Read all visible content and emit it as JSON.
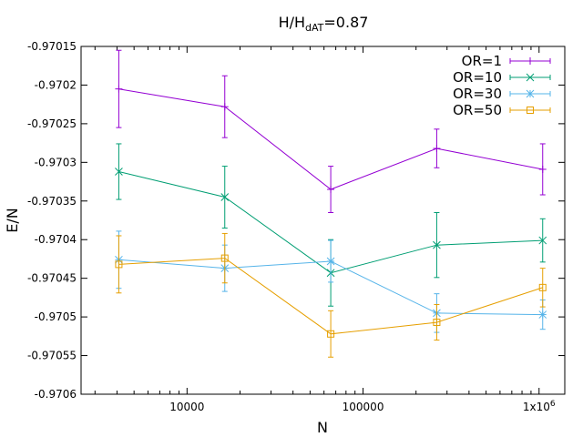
{
  "chart_data": {
    "type": "line",
    "title": {
      "main": "H/H",
      "sub": "dAT",
      "suffix": "=0.87"
    },
    "xlabel": "N",
    "ylabel": "E/N",
    "xscale": "log",
    "xlim": [
      2500,
      1400000
    ],
    "ylim": [
      -0.9706,
      -0.97015
    ],
    "x_ticks": [
      {
        "value": 10000,
        "label": "10000"
      },
      {
        "value": 100000,
        "label": "100000"
      },
      {
        "value": 1000000,
        "label": "1x10",
        "sup": "6"
      }
    ],
    "y_ticks": [
      {
        "value": -0.97015,
        "label": "-0.97015"
      },
      {
        "value": -0.9702,
        "label": "-0.9702"
      },
      {
        "value": -0.97025,
        "label": "-0.97025"
      },
      {
        "value": -0.9703,
        "label": "-0.9703"
      },
      {
        "value": -0.97035,
        "label": "-0.97035"
      },
      {
        "value": -0.9704,
        "label": "-0.9704"
      },
      {
        "value": -0.97045,
        "label": "-0.97045"
      },
      {
        "value": -0.9705,
        "label": "-0.9705"
      },
      {
        "value": -0.97055,
        "label": "-0.97055"
      },
      {
        "value": -0.9706,
        "label": "-0.9706"
      }
    ],
    "x": [
      4096,
      16384,
      65536,
      262144,
      1048576
    ],
    "legend_position": "top-right",
    "series": [
      {
        "name": "OR=1",
        "color": "#9400d3",
        "marker": "plus",
        "values": [
          -0.970205,
          -0.970228,
          -0.970335,
          -0.970282,
          -0.970309
        ],
        "errors": [
          5e-05,
          4e-05,
          3e-05,
          2.5e-05,
          3.3e-05
        ]
      },
      {
        "name": "OR=10",
        "color": "#009e73",
        "marker": "cross",
        "values": [
          -0.970312,
          -0.970345,
          -0.970443,
          -0.970407,
          -0.970401
        ],
        "errors": [
          3.6e-05,
          4e-05,
          4.3e-05,
          4.2e-05,
          2.8e-05
        ]
      },
      {
        "name": "OR=30",
        "color": "#56b4e9",
        "marker": "star",
        "values": [
          -0.970426,
          -0.970437,
          -0.970428,
          -0.970495,
          -0.970497
        ],
        "errors": [
          3.7e-05,
          3e-05,
          2.7e-05,
          2.5e-05,
          1.9e-05
        ]
      },
      {
        "name": "OR=50",
        "color": "#e69f00",
        "marker": "square",
        "values": [
          -0.970432,
          -0.970424,
          -0.970522,
          -0.970507,
          -0.970462
        ],
        "errors": [
          3.7e-05,
          3.2e-05,
          3e-05,
          2.3e-05,
          2.5e-05
        ]
      }
    ]
  }
}
